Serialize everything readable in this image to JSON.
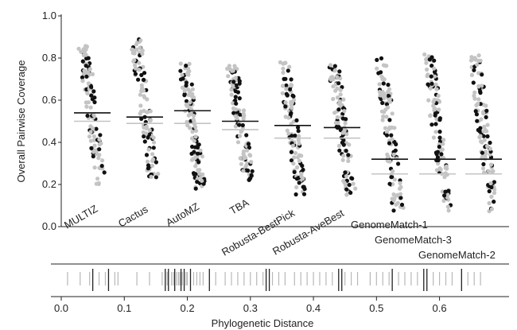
{
  "chart_data": [
    {
      "type": "scatter",
      "title": "",
      "xlabel": "",
      "ylabel": "Overall Pairwise Coverage",
      "ylim": [
        0.0,
        1.0
      ],
      "y_ticks": [
        "0.0",
        "0.2",
        "0.4",
        "0.6",
        "0.8",
        "1.0"
      ],
      "grid": false,
      "categories": [
        "MULTIZ",
        "Cactus",
        "AutoMZ",
        "TBA",
        "Robusta-BestPick",
        "Robusta-AveBest",
        "GenomeMatch-1",
        "GenomeMatch-3",
        "GenomeMatch-2"
      ],
      "point_colors": {
        "highlighted": "#111111",
        "other": "#c4c4c4"
      },
      "series": [
        {
          "category": "MULTIZ",
          "mean_black": 0.54,
          "mean_gray": 0.5,
          "range": [
            0.2,
            0.86
          ],
          "center": 0.58
        },
        {
          "category": "Cactus",
          "mean_black": 0.52,
          "mean_gray": 0.49,
          "range": [
            0.23,
            0.89
          ],
          "center": 0.55
        },
        {
          "category": "AutoMZ",
          "mean_black": 0.55,
          "mean_gray": 0.49,
          "range": [
            0.18,
            0.79
          ],
          "center": 0.55
        },
        {
          "category": "TBA",
          "mean_black": 0.5,
          "mean_gray": 0.46,
          "range": [
            0.22,
            0.78
          ],
          "center": 0.5
        },
        {
          "category": "Robusta-BestPick",
          "mean_black": 0.48,
          "mean_gray": 0.42,
          "range": [
            0.15,
            0.78
          ],
          "center": 0.47
        },
        {
          "category": "Robusta-AveBest",
          "mean_black": 0.47,
          "mean_gray": 0.42,
          "range": [
            0.15,
            0.78
          ],
          "center": 0.46
        },
        {
          "category": "GenomeMatch-1",
          "mean_black": 0.32,
          "mean_gray": 0.25,
          "range": [
            0.07,
            0.8
          ],
          "center": 0.3
        },
        {
          "category": "GenomeMatch-3",
          "mean_black": 0.32,
          "mean_gray": 0.25,
          "range": [
            0.07,
            0.82
          ],
          "center": 0.3
        },
        {
          "category": "GenomeMatch-2",
          "mean_black": 0.32,
          "mean_gray": 0.25,
          "range": [
            0.07,
            0.82
          ],
          "center": 0.3
        }
      ]
    },
    {
      "type": "rug",
      "title": "",
      "xlabel": "Phylogenetic Distance",
      "xlim": [
        0.0,
        0.68
      ],
      "x_ticks": [
        "0.0",
        "0.1",
        "0.2",
        "0.3",
        "0.4",
        "0.5",
        "0.6"
      ],
      "grid": false,
      "black_lines": [
        0.05,
        0.075,
        0.165,
        0.17,
        0.18,
        0.19,
        0.195,
        0.205,
        0.235,
        0.325,
        0.33,
        0.44,
        0.445,
        0.525,
        0.575,
        0.58,
        0.635
      ],
      "gray_lines": [
        0.01,
        0.03,
        0.045,
        0.06,
        0.07,
        0.085,
        0.09,
        0.12,
        0.14,
        0.16,
        0.168,
        0.175,
        0.178,
        0.183,
        0.186,
        0.188,
        0.192,
        0.198,
        0.2,
        0.21,
        0.215,
        0.22,
        0.225,
        0.245,
        0.26,
        0.27,
        0.28,
        0.29,
        0.3,
        0.31,
        0.32,
        0.335,
        0.345,
        0.355,
        0.37,
        0.38,
        0.39,
        0.4,
        0.41,
        0.42,
        0.43,
        0.45,
        0.46,
        0.47,
        0.49,
        0.5,
        0.51,
        0.52,
        0.535,
        0.545,
        0.555,
        0.565,
        0.59,
        0.6,
        0.61,
        0.62,
        0.645,
        0.655,
        0.665
      ]
    }
  ]
}
